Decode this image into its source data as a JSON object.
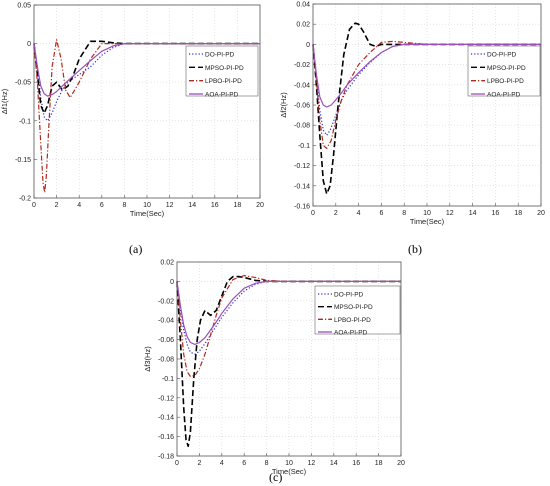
{
  "figure": {
    "line_styles": {
      "DO-PI-PD": "dotted",
      "MPSO-PI-PD": "dashed",
      "LPBO-PI-PD": "dash-dot",
      "AOA-PI-PD": "solid"
    },
    "colors": {
      "DO-PI-PD": "#2a2adc",
      "MPSO-PI-PD": "#000000",
      "LPBO-PI-PD": "#b0281c",
      "AOA-PI-PD": "#9a50b8"
    }
  },
  "chart_data": [
    {
      "type": "line",
      "caption": "(a)",
      "xlabel": "Time(Sec)",
      "ylabel": "Δf1(Hz)",
      "xlim": [
        0,
        20
      ],
      "ylim": [
        -0.2,
        0.05
      ],
      "xticks": [
        0,
        2,
        4,
        6,
        8,
        10,
        12,
        14,
        16,
        18,
        20
      ],
      "yticks": [
        0.05,
        0,
        -0.05,
        -0.1,
        -0.15,
        -0.2
      ],
      "ytick_labels": [
        "0.05",
        "0",
        "-0.05",
        "-0.1",
        "-0.15",
        "-0.2"
      ],
      "grid": true,
      "legend_position": "top-right",
      "series": [
        {
          "name": "DO-PI-PD",
          "x": [
            0,
            0.3,
            0.6,
            0.9,
            1.2,
            1.6,
            2,
            2.5,
            3,
            3.5,
            4,
            5,
            6,
            7,
            8,
            10,
            20
          ],
          "y": [
            0,
            -0.03,
            -0.07,
            -0.095,
            -0.1,
            -0.09,
            -0.075,
            -0.06,
            -0.05,
            -0.045,
            -0.04,
            -0.03,
            -0.015,
            -0.005,
            0,
            0,
            0
          ]
        },
        {
          "name": "MPSO-PI-PD",
          "x": [
            0,
            0.3,
            0.6,
            0.9,
            1.2,
            1.6,
            2,
            2.5,
            3,
            3.5,
            4,
            5,
            6,
            7,
            8,
            10,
            20
          ],
          "y": [
            0,
            -0.04,
            -0.08,
            -0.09,
            -0.08,
            -0.055,
            -0.05,
            -0.06,
            -0.055,
            -0.04,
            -0.02,
            0.003,
            0.003,
            0.001,
            0,
            0,
            0
          ]
        },
        {
          "name": "LPBO-PI-PD",
          "x": [
            0,
            0.3,
            0.6,
            0.8,
            0.95,
            1.1,
            1.3,
            1.6,
            2,
            2.4,
            2.8,
            3.2,
            4,
            5,
            6,
            8,
            20
          ],
          "y": [
            0,
            -0.05,
            -0.13,
            -0.18,
            -0.193,
            -0.17,
            -0.11,
            -0.03,
            0.005,
            -0.02,
            -0.06,
            -0.07,
            -0.05,
            -0.02,
            0,
            0,
            0
          ]
        },
        {
          "name": "AOA-PI-PD",
          "x": [
            0,
            0.3,
            0.6,
            0.9,
            1.2,
            1.6,
            2,
            2.5,
            3,
            4,
            5,
            6,
            7,
            8,
            10,
            20
          ],
          "y": [
            0,
            -0.03,
            -0.055,
            -0.065,
            -0.068,
            -0.066,
            -0.062,
            -0.055,
            -0.048,
            -0.035,
            -0.022,
            -0.01,
            -0.003,
            0,
            0,
            0
          ]
        }
      ]
    },
    {
      "type": "line",
      "caption": "(b)",
      "xlabel": "Time(Sec)",
      "ylabel": "Δf2(Hz)",
      "xlim": [
        0,
        20
      ],
      "ylim": [
        -0.16,
        0.04
      ],
      "xticks": [
        0,
        2,
        4,
        6,
        8,
        10,
        12,
        14,
        16,
        18,
        20
      ],
      "yticks": [
        0.04,
        0.02,
        0,
        -0.02,
        -0.04,
        -0.06,
        -0.08,
        -0.1,
        -0.12,
        -0.14,
        -0.16
      ],
      "ytick_labels": [
        "0.04",
        "0.02",
        "0",
        "-0.02",
        "-0.04",
        "-0.06",
        "-0.08",
        "-0.1",
        "-0.12",
        "-0.14",
        "-0.16"
      ],
      "grid": true,
      "legend_position": "top-right",
      "series": [
        {
          "name": "DO-PI-PD",
          "x": [
            0,
            0.3,
            0.6,
            0.9,
            1.2,
            1.5,
            2,
            2.5,
            3,
            4,
            5,
            6,
            7,
            8,
            10,
            20
          ],
          "y": [
            0,
            -0.03,
            -0.065,
            -0.085,
            -0.09,
            -0.085,
            -0.07,
            -0.055,
            -0.045,
            -0.03,
            -0.018,
            -0.008,
            -0.002,
            0,
            0,
            0
          ]
        },
        {
          "name": "MPSO-PI-PD",
          "x": [
            0,
            0.3,
            0.6,
            0.9,
            1.2,
            1.5,
            1.8,
            2.2,
            2.7,
            3.2,
            3.7,
            4,
            4.4,
            5,
            5.5,
            6,
            7,
            8,
            20
          ],
          "y": [
            0,
            -0.04,
            -0.09,
            -0.135,
            -0.148,
            -0.14,
            -0.11,
            -0.06,
            -0.01,
            0.015,
            0.021,
            0.02,
            0.013,
            0,
            -0.002,
            0,
            0,
            0,
            0
          ]
        },
        {
          "name": "LPBO-PI-PD",
          "x": [
            0,
            0.3,
            0.6,
            0.9,
            1.2,
            1.6,
            2,
            2.5,
            3,
            3.5,
            4,
            5,
            6,
            7,
            8,
            10,
            20
          ],
          "y": [
            0,
            -0.035,
            -0.075,
            -0.1,
            -0.103,
            -0.095,
            -0.075,
            -0.055,
            -0.04,
            -0.03,
            -0.02,
            -0.008,
            0.002,
            0.003,
            0.002,
            0,
            0
          ]
        },
        {
          "name": "AOA-PI-PD",
          "x": [
            0,
            0.3,
            0.6,
            0.9,
            1.2,
            1.6,
            2,
            2.5,
            3,
            4,
            5,
            6,
            7,
            8,
            10,
            20
          ],
          "y": [
            0,
            -0.03,
            -0.052,
            -0.06,
            -0.062,
            -0.06,
            -0.055,
            -0.048,
            -0.04,
            -0.028,
            -0.017,
            -0.008,
            -0.002,
            0,
            0,
            0
          ]
        }
      ]
    },
    {
      "type": "line",
      "caption": "(c)",
      "xlabel": "Time(Sec)",
      "ylabel": "Δf3(Hz)",
      "xlim": [
        0,
        20
      ],
      "ylim": [
        -0.18,
        0.02
      ],
      "xticks": [
        0,
        2,
        4,
        6,
        8,
        10,
        12,
        14,
        16,
        18,
        20
      ],
      "yticks": [
        0.02,
        0,
        -0.02,
        -0.04,
        -0.06,
        -0.08,
        -0.1,
        -0.12,
        -0.14,
        -0.16,
        -0.18
      ],
      "ytick_labels": [
        "0.02",
        "0",
        "-0.02",
        "-0.04",
        "-0.06",
        "-0.08",
        "-0.1",
        "-0.12",
        "-0.14",
        "-0.16",
        "-0.18"
      ],
      "grid": true,
      "legend_position": "top-right",
      "series": [
        {
          "name": "DO-PI-PD",
          "x": [
            0,
            0.3,
            0.6,
            0.9,
            1.2,
            1.6,
            2,
            2.5,
            3,
            3.5,
            4,
            5,
            6,
            7,
            8,
            10,
            20
          ],
          "y": [
            0,
            -0.03,
            -0.05,
            -0.065,
            -0.073,
            -0.075,
            -0.072,
            -0.064,
            -0.055,
            -0.046,
            -0.037,
            -0.022,
            -0.01,
            -0.003,
            0,
            0,
            0
          ]
        },
        {
          "name": "MPSO-PI-PD",
          "x": [
            0,
            0.3,
            0.6,
            0.8,
            1,
            1.2,
            1.5,
            1.8,
            2.1,
            2.5,
            3,
            3.5,
            4,
            4.5,
            5,
            5.5,
            6,
            7,
            8,
            20
          ],
          "y": [
            0,
            -0.06,
            -0.13,
            -0.163,
            -0.17,
            -0.155,
            -0.1,
            -0.06,
            -0.04,
            -0.03,
            -0.035,
            -0.03,
            -0.015,
            0,
            0.005,
            0.005,
            0.004,
            0.001,
            0,
            0
          ]
        },
        {
          "name": "LPBO-PI-PD",
          "x": [
            0,
            0.3,
            0.6,
            0.9,
            1.2,
            1.6,
            2,
            2.5,
            3,
            3.5,
            4,
            5,
            6,
            7,
            8,
            10,
            20
          ],
          "y": [
            0,
            -0.04,
            -0.075,
            -0.093,
            -0.098,
            -0.097,
            -0.09,
            -0.075,
            -0.055,
            -0.035,
            -0.017,
            0.002,
            0.006,
            0.004,
            0.001,
            0,
            0
          ]
        },
        {
          "name": "AOA-PI-PD",
          "x": [
            0,
            0.3,
            0.6,
            0.9,
            1.2,
            1.6,
            2,
            2.5,
            3,
            3.5,
            4,
            5,
            6,
            7,
            8,
            10,
            20
          ],
          "y": [
            0,
            -0.025,
            -0.045,
            -0.057,
            -0.063,
            -0.065,
            -0.063,
            -0.058,
            -0.05,
            -0.042,
            -0.033,
            -0.018,
            -0.007,
            -0.002,
            0,
            0,
            0
          ]
        }
      ]
    }
  ]
}
